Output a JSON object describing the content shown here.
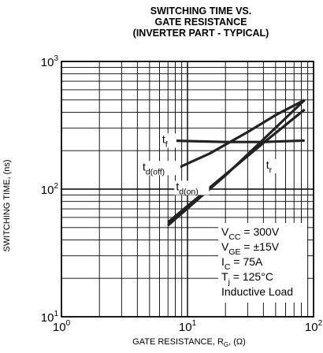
{
  "chart_data": {
    "type": "line",
    "title": [
      "SWITCHING TIME VS.",
      "GATE RESISTANCE",
      "(INVERTER PART - TYPICAL)"
    ],
    "xlabel": "GATE RESISTANCE, R_G, (Ω)",
    "ylabel": "SWITCHING TIME, (ns)",
    "x_scale": "log",
    "y_scale": "log",
    "xlim": [
      1,
      100
    ],
    "ylim": [
      10,
      1000
    ],
    "x_ticks": [
      {
        "value": 1,
        "base": "10",
        "exp": "0"
      },
      {
        "value": 10,
        "base": "10",
        "exp": "1"
      },
      {
        "value": 100,
        "base": "10",
        "exp": "2"
      }
    ],
    "y_ticks": [
      {
        "value": 10,
        "base": "10",
        "exp": "1"
      },
      {
        "value": 100,
        "base": "10",
        "exp": "2"
      },
      {
        "value": 1000,
        "base": "10",
        "exp": "3"
      }
    ],
    "grid": true,
    "series": [
      {
        "name": "tf",
        "label_main": "t",
        "label_sub": "f",
        "label_at": [
          6.3,
          230
        ],
        "x": [
          7,
          20,
          40,
          85
        ],
        "y": [
          240,
          234,
          234,
          240
        ]
      },
      {
        "name": "td(off)",
        "label_main": "t",
        "label_sub": "d(off)",
        "label_at": [
          4.4,
          140
        ],
        "x": [
          7,
          15,
          30,
          50,
          85
        ],
        "y": [
          135,
          190,
          280,
          380,
          500
        ]
      },
      {
        "name": "tr",
        "label_main": "t",
        "label_sub": "r",
        "label_at": [
          42,
          145
        ],
        "x": [
          7,
          20,
          40,
          85
        ],
        "y": [
          55,
          130,
          230,
          420
        ]
      },
      {
        "name": "td(on)",
        "label_main": "t",
        "label_sub": "d(on)",
        "label_at": [
          8.1,
          98
        ],
        "x": [
          7,
          20,
          40,
          85
        ],
        "y": [
          52,
          128,
          245,
          500
        ]
      }
    ],
    "conditions": [
      {
        "main": "V",
        "sub": "CC",
        "rest": " = 300V"
      },
      {
        "main": "V",
        "sub": "GE",
        "rest": " = ±15V"
      },
      {
        "main": "I",
        "sub": "C",
        "rest": " = 75A"
      },
      {
        "main": "T",
        "sub": "j",
        "rest": " = 125°C"
      },
      {
        "main": "Inductive Load",
        "sub": "",
        "rest": ""
      }
    ]
  }
}
